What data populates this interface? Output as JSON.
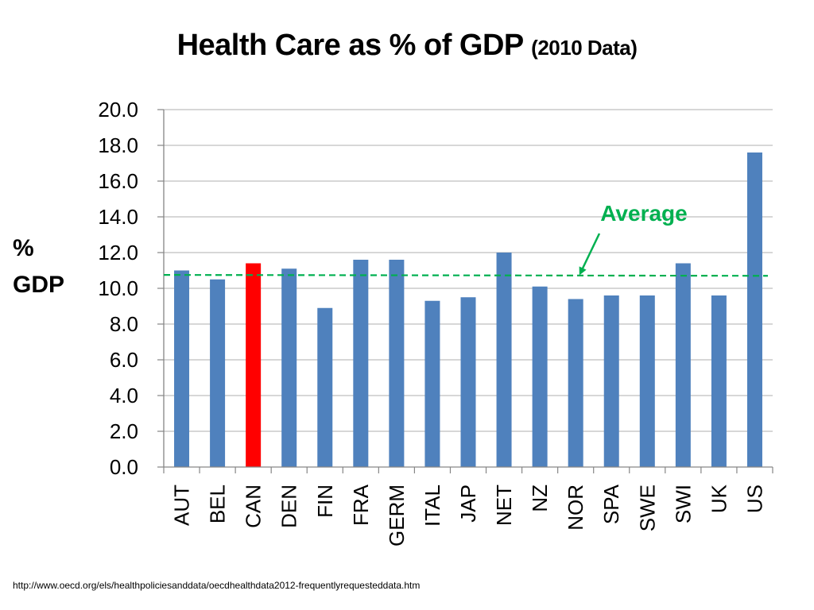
{
  "title": {
    "main": "Health Care as % of GDP",
    "sub": "(2010 Data)"
  },
  "ylabel_lines": [
    "%",
    "GDP"
  ],
  "source": "http://www.oecd.org/els/healthpoliciesanddata/oecdhealthdata2012-frequentlyrequesteddata.htm",
  "colors": {
    "bar": "#4F81BD",
    "highlight": "#FF0000",
    "average": "#00B050",
    "grid": "#BFBFBF",
    "axis": "#868686"
  },
  "chart_data": {
    "type": "bar",
    "title": "Health Care as % of GDP (2010 Data)",
    "xlabel": "",
    "ylabel": "% GDP",
    "ylim": [
      0,
      20
    ],
    "yticks": [
      "0.0",
      "2.0",
      "4.0",
      "6.0",
      "8.0",
      "10.0",
      "12.0",
      "14.0",
      "16.0",
      "18.0",
      "20.0"
    ],
    "categories": [
      "AUT",
      "BEL",
      "CAN",
      "DEN",
      "FIN",
      "FRA",
      "GERM",
      "ITAL",
      "JAP",
      "NET",
      "NZ",
      "NOR",
      "SPA",
      "SWE",
      "SWI",
      "UK",
      "US"
    ],
    "values": [
      11.0,
      10.5,
      11.4,
      11.1,
      8.9,
      11.6,
      11.6,
      9.3,
      9.5,
      12.0,
      10.1,
      9.4,
      9.6,
      9.6,
      11.4,
      9.6,
      17.6
    ],
    "highlight_category": "CAN",
    "grid": true,
    "average": {
      "label": "Average",
      "y_start": 10.75,
      "y_end": 10.7
    }
  }
}
